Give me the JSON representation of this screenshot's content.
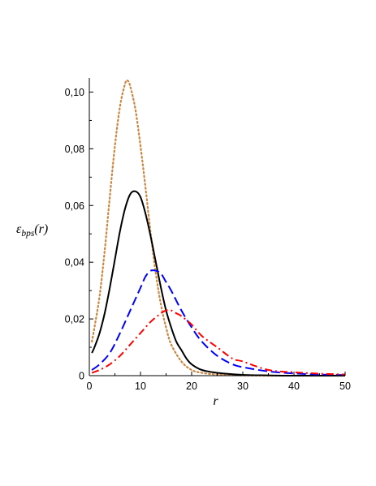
{
  "chart_data": {
    "type": "line",
    "title": "",
    "xlabel": "r",
    "ylabel_parts": {
      "base": "ε",
      "sub": "bps",
      "arg": "(r)"
    },
    "xlim": [
      0,
      50
    ],
    "ylim": [
      0,
      0.105
    ],
    "x_ticks": [
      0,
      10,
      20,
      30,
      40,
      50
    ],
    "x_tick_labels": [
      "0",
      "10",
      "20",
      "30",
      "40",
      "50"
    ],
    "y_ticks": [
      0,
      0.02,
      0.04,
      0.06,
      0.08,
      0.1
    ],
    "y_tick_labels": [
      "0",
      "0,02",
      "0,04",
      "0,06",
      "0,08",
      "0,10"
    ],
    "grid": false,
    "legend": "none",
    "series": [
      {
        "color": "#CD853F",
        "style": "dotted",
        "x": [
          0.5,
          1,
          2,
          3,
          4,
          5,
          6,
          7,
          7.5,
          8,
          9,
          10,
          11,
          12,
          13,
          14,
          15,
          16,
          18,
          20,
          22,
          25,
          30,
          35,
          40,
          50
        ],
        "y": [
          0.012,
          0.017,
          0.028,
          0.044,
          0.063,
          0.081,
          0.095,
          0.103,
          0.104,
          0.102,
          0.094,
          0.081,
          0.066,
          0.05,
          0.036,
          0.025,
          0.017,
          0.011,
          0.005,
          0.002,
          0.001,
          0.0004,
          0.0001,
          0.0,
          0.0,
          0.0
        ]
      },
      {
        "color": "#000000",
        "style": "solid",
        "x": [
          0.5,
          1,
          2,
          3,
          4,
          5,
          6,
          7,
          8,
          9,
          10,
          11,
          12,
          13,
          14,
          15,
          16,
          17,
          18,
          19,
          20,
          22,
          25,
          30,
          35,
          40,
          50
        ],
        "y": [
          0.008,
          0.01,
          0.015,
          0.022,
          0.031,
          0.041,
          0.051,
          0.059,
          0.064,
          0.065,
          0.063,
          0.057,
          0.049,
          0.04,
          0.031,
          0.023,
          0.017,
          0.012,
          0.009,
          0.006,
          0.004,
          0.002,
          0.001,
          0.0003,
          0.0001,
          0.0,
          0.0
        ]
      },
      {
        "color": "#0000FF",
        "style": "dashed",
        "x": [
          0.5,
          2,
          4,
          6,
          8,
          10,
          11,
          12,
          13,
          14,
          15,
          16,
          18,
          20,
          22,
          25,
          28,
          30,
          35,
          40,
          45,
          50
        ],
        "y": [
          0.002,
          0.004,
          0.008,
          0.015,
          0.023,
          0.031,
          0.035,
          0.037,
          0.037,
          0.036,
          0.033,
          0.03,
          0.023,
          0.017,
          0.012,
          0.007,
          0.004,
          0.003,
          0.0015,
          0.0008,
          0.0004,
          0.0002
        ]
      },
      {
        "color": "#FF0000",
        "style": "dashdot",
        "x": [
          0.5,
          2,
          4,
          6,
          8,
          10,
          12,
          14,
          15,
          16,
          17,
          18,
          20,
          22,
          25,
          28,
          30,
          35,
          40,
          45,
          50
        ],
        "y": [
          0.001,
          0.002,
          0.004,
          0.007,
          0.011,
          0.015,
          0.019,
          0.022,
          0.023,
          0.023,
          0.022,
          0.021,
          0.018,
          0.014,
          0.01,
          0.006,
          0.005,
          0.002,
          0.0012,
          0.0007,
          0.0004
        ]
      }
    ]
  }
}
